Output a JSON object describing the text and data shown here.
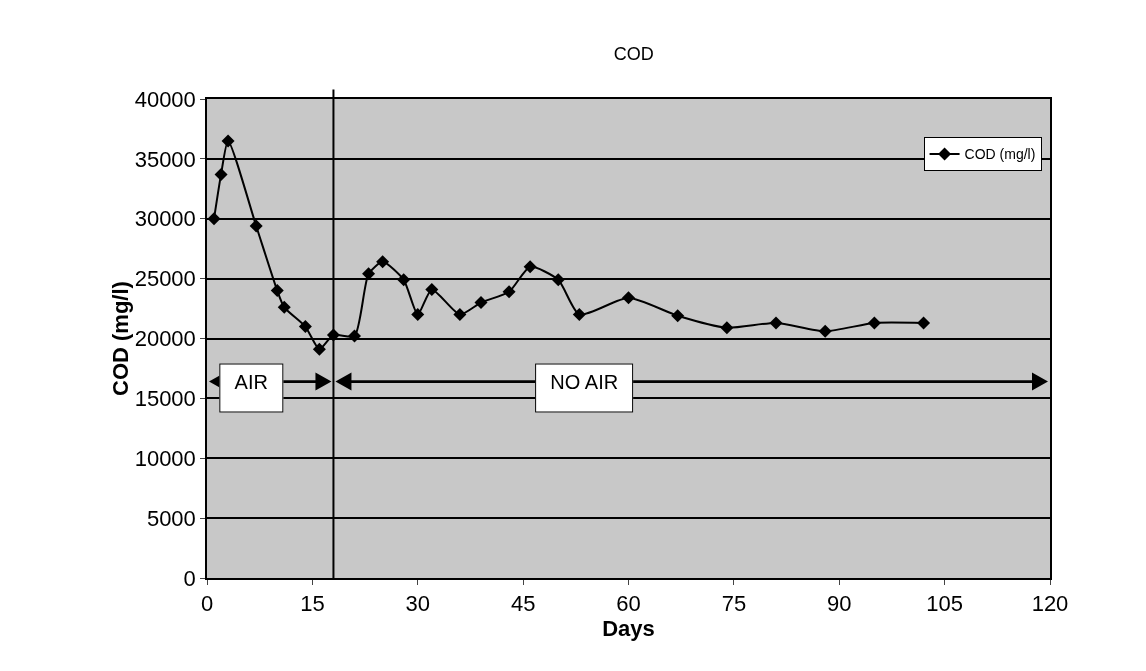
{
  "chart_data": {
    "type": "line",
    "title": "COD",
    "xlabel": "Days",
    "ylabel": "COD (mg/l)",
    "x": [
      1,
      2,
      3,
      7,
      10,
      11,
      14,
      16,
      18,
      21,
      23,
      25,
      28,
      30,
      32,
      36,
      39,
      43,
      46,
      50,
      53,
      60,
      67,
      74,
      81,
      88,
      95,
      102
    ],
    "series": [
      {
        "name": "COD (mg/l)",
        "color": "#000000",
        "values": [
          30000,
          33700,
          36500,
          29400,
          24000,
          22600,
          21000,
          19100,
          20300,
          20200,
          25400,
          26400,
          24900,
          22000,
          24100,
          22000,
          23000,
          23900,
          26000,
          24900,
          22000,
          23400,
          21900,
          20900,
          21300,
          20600,
          21300,
          21300
        ]
      }
    ],
    "xlim": [
      0,
      120
    ],
    "xticks": [
      0,
      15,
      30,
      45,
      60,
      75,
      90,
      105,
      120
    ],
    "ylim": [
      0,
      40000
    ],
    "yticks": [
      0,
      5000,
      10000,
      15000,
      20000,
      25000,
      30000,
      35000,
      40000
    ],
    "grid": "y",
    "legend": "top right",
    "marker": "diamond",
    "line_style": "solid",
    "ref_lines": [
      {
        "axis": "x",
        "value": 18,
        "label": null,
        "color": "#000000"
      }
    ],
    "annotations": [
      "AIR",
      "NO AIR"
    ]
  }
}
